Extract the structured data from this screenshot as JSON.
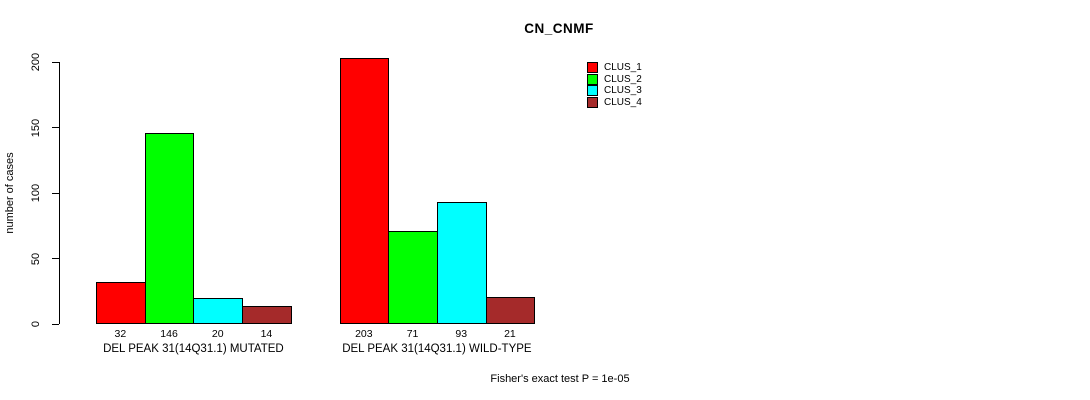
{
  "title": "CN_CNMF",
  "chart_data": {
    "type": "bar",
    "title": "CN_CNMF",
    "xlabel": "",
    "ylabel": "number of cases",
    "ylim": [
      0,
      215
    ],
    "yticks": [
      0,
      50,
      100,
      150,
      200
    ],
    "grid": false,
    "legend_position": "top-right",
    "categories": [
      "DEL PEAK 31(14Q31.1) MUTATED",
      "DEL PEAK 31(14Q31.1) WILD-TYPE"
    ],
    "series": [
      {
        "name": "CLUS_1",
        "color": "#FF0000",
        "values": [
          32,
          203
        ]
      },
      {
        "name": "CLUS_2",
        "color": "#00FF00",
        "values": [
          146,
          71
        ]
      },
      {
        "name": "CLUS_3",
        "color": "#00FFFF",
        "values": [
          20,
          93
        ]
      },
      {
        "name": "CLUS_4",
        "color": "#A52A2A",
        "values": [
          14,
          21
        ]
      }
    ],
    "bar_value_labels": true,
    "footnote": "Fisher's exact test P = 1e-05"
  }
}
